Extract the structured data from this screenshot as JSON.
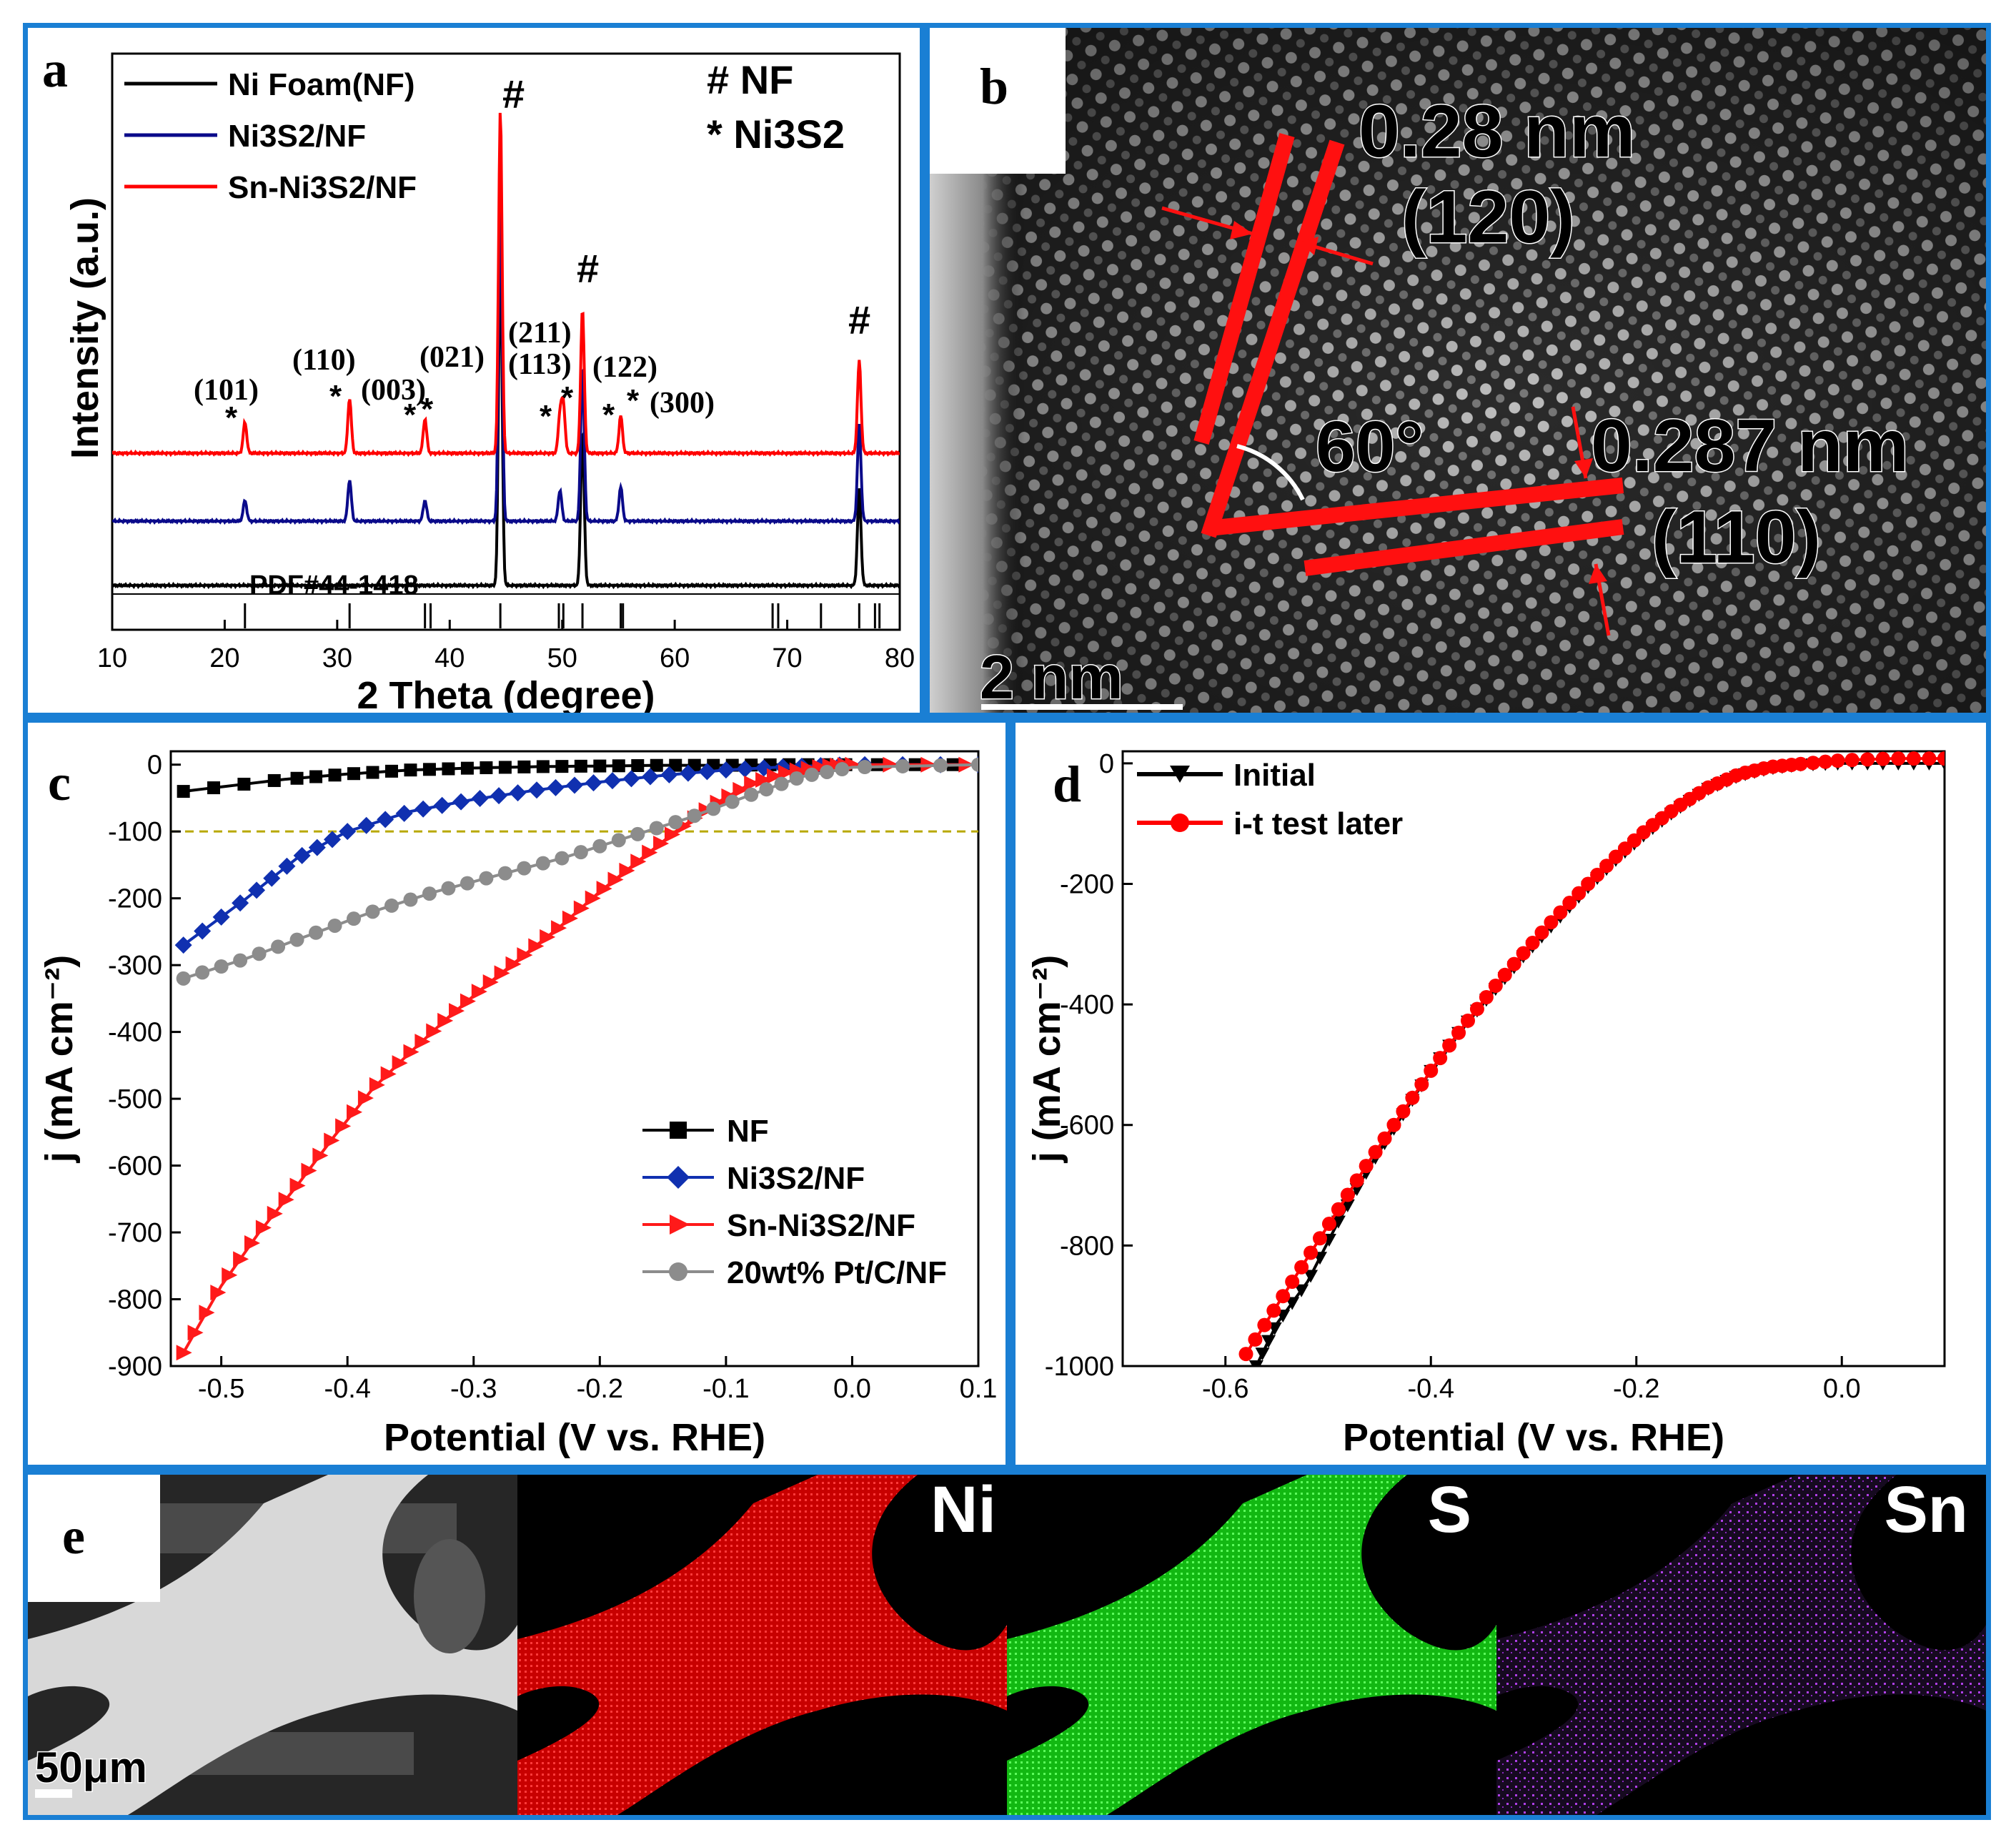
{
  "colors": {
    "frame": "#1a7fd4",
    "ni": "#e00000",
    "s": "#19e619",
    "sn": "#9a2fd0"
  },
  "panel_a": {
    "label": "a",
    "title_marker": "# NF",
    "title_marker2": "* Ni3S2",
    "pdf_label": "PDF#44-1418",
    "chart_data": {
      "type": "line",
      "xlabel": "2 Theta (degree)",
      "ylabel": "Intensity (a.u.)",
      "xlim": [
        10,
        80
      ],
      "xticks": [
        10,
        20,
        30,
        40,
        50,
        60,
        70,
        80
      ],
      "series": [
        {
          "name": "Ni Foam(NF)",
          "color": "#000000",
          "peaks": [
            [
              44.5,
              100
            ],
            [
              51.8,
              45
            ],
            [
              76.4,
              28
            ]
          ]
        },
        {
          "name": "Ni3S2/NF",
          "color": "#0a0a8a",
          "peaks": [
            [
              21.8,
              6
            ],
            [
              31.1,
              12
            ],
            [
              37.8,
              6
            ],
            [
              44.5,
              100
            ],
            [
              49.8,
              9
            ],
            [
              51.8,
              45
            ],
            [
              55.2,
              10
            ],
            [
              76.4,
              28
            ]
          ]
        },
        {
          "name": "Sn-Ni3S2/NF",
          "color": "#ff0000",
          "peaks": [
            [
              21.8,
              9
            ],
            [
              31.1,
              16
            ],
            [
              37.8,
              10
            ],
            [
              44.5,
              100
            ],
            [
              49.8,
              11
            ],
            [
              50.1,
              14
            ],
            [
              51.8,
              42
            ],
            [
              55.2,
              11
            ],
            [
              76.4,
              27
            ]
          ]
        }
      ],
      "pdf_lines": [
        21.8,
        31.1,
        37.8,
        38.3,
        44.5,
        49.7,
        50.1,
        51.8,
        55.2,
        55.4,
        68.7,
        69.2,
        73.0,
        76.4,
        77.8,
        78.2
      ],
      "annotations": [
        {
          "text": "(101)",
          "x": 22
        },
        {
          "text": "(110)",
          "x": 30
        },
        {
          "text": "(003)",
          "x": 36
        },
        {
          "text": "(021)",
          "x": 40
        },
        {
          "text": "(211)",
          "x": 48
        },
        {
          "text": "(113)",
          "x": 48
        },
        {
          "text": "(122)",
          "x": 55
        },
        {
          "text": "(300)",
          "x": 58
        },
        {
          "text": "#",
          "x": 44.5
        },
        {
          "text": "#",
          "x": 51.8
        },
        {
          "text": "#",
          "x": 76.4
        }
      ]
    }
  },
  "panel_b": {
    "label": "b",
    "d1": "0.28 nm",
    "hkl1": "(120)",
    "d2": "0.287 nm",
    "hkl2": "(110)",
    "angle": "60°",
    "scale": "2 nm"
  },
  "panel_c": {
    "label": "c",
    "chart_data": {
      "type": "line",
      "xlabel": "Potential (V vs. RHE)",
      "ylabel": "j (mA cm⁻²)",
      "xlim": [
        -0.54,
        0.1
      ],
      "ylim": [
        -900,
        20
      ],
      "xticks": [
        -0.5,
        -0.4,
        -0.3,
        -0.2,
        -0.1,
        0.0,
        0.1
      ],
      "yticks": [
        0,
        -100,
        -200,
        -300,
        -400,
        -500,
        -600,
        -700,
        -800,
        -900
      ],
      "reference_line": -100,
      "series": [
        {
          "name": "NF",
          "color": "#000000",
          "marker": "square",
          "x": [
            -0.53,
            -0.45,
            -0.4,
            -0.35,
            -0.3,
            -0.25,
            -0.2,
            -0.15,
            -0.1,
            -0.05,
            0.0,
            0.1
          ],
          "y": [
            -40,
            -22,
            -14,
            -8,
            -5,
            -3,
            -2,
            -1,
            -1,
            0,
            0,
            0
          ]
        },
        {
          "name": "Ni3S2/NF",
          "color": "#1030b0",
          "marker": "diamond",
          "x": [
            -0.53,
            -0.48,
            -0.44,
            -0.4,
            -0.35,
            -0.3,
            -0.25,
            -0.2,
            -0.15,
            -0.1,
            -0.05,
            0.0,
            0.1
          ],
          "y": [
            -270,
            -200,
            -140,
            -100,
            -70,
            -52,
            -38,
            -26,
            -16,
            -8,
            -3,
            0,
            0
          ]
        },
        {
          "name": "Sn-Ni3S2/NF",
          "color": "#ff1a1a",
          "marker": "triangle-right",
          "x": [
            -0.53,
            -0.5,
            -0.47,
            -0.44,
            -0.41,
            -0.38,
            -0.35,
            -0.32,
            -0.29,
            -0.26,
            -0.23,
            -0.2,
            -0.17,
            -0.14,
            -0.11,
            -0.08,
            -0.05,
            -0.02,
            0.0,
            0.1
          ],
          "y": [
            -880,
            -780,
            -700,
            -630,
            -555,
            -485,
            -430,
            -378,
            -330,
            -285,
            -240,
            -190,
            -145,
            -100,
            -60,
            -28,
            -10,
            -2,
            0,
            0
          ]
        },
        {
          "name": "20wt% Pt/C/NF",
          "color": "#8c8c8c",
          "marker": "circle",
          "x": [
            -0.53,
            -0.48,
            -0.43,
            -0.38,
            -0.33,
            -0.28,
            -0.23,
            -0.18,
            -0.13,
            -0.08,
            -0.04,
            0.0,
            0.1
          ],
          "y": [
            -320,
            -290,
            -255,
            -220,
            -190,
            -165,
            -140,
            -110,
            -80,
            -45,
            -18,
            -4,
            0
          ]
        }
      ]
    }
  },
  "panel_d": {
    "label": "d",
    "chart_data": {
      "type": "line",
      "xlabel": "Potential (V vs. RHE)",
      "ylabel": "j (mA cm⁻²)",
      "xlim": [
        -0.7,
        0.1
      ],
      "ylim": [
        -1000,
        20
      ],
      "xticks": [
        -0.6,
        -0.4,
        -0.2,
        0.0
      ],
      "yticks": [
        0,
        -200,
        -400,
        -600,
        -800,
        -1000
      ],
      "series": [
        {
          "name": "Initial",
          "color": "#000000",
          "marker": "triangle-down",
          "x": [
            -0.57,
            -0.55,
            -0.52,
            -0.49,
            -0.46,
            -0.43,
            -0.4,
            -0.37,
            -0.34,
            -0.31,
            -0.28,
            -0.25,
            -0.22,
            -0.19,
            -0.16,
            -0.13,
            -0.1,
            -0.07,
            -0.04,
            0.0,
            0.05,
            0.1
          ],
          "y": [
            -1000,
            -930,
            -860,
            -760,
            -670,
            -590,
            -510,
            -440,
            -380,
            -320,
            -265,
            -210,
            -160,
            -115,
            -75,
            -42,
            -20,
            -8,
            -2,
            0,
            0,
            0
          ]
        },
        {
          "name": "i-t test later",
          "color": "#ff0000",
          "marker": "circle",
          "x": [
            -0.58,
            -0.55,
            -0.52,
            -0.49,
            -0.46,
            -0.43,
            -0.4,
            -0.37,
            -0.34,
            -0.31,
            -0.28,
            -0.25,
            -0.22,
            -0.19,
            -0.16,
            -0.13,
            -0.1,
            -0.07,
            -0.04,
            0.0,
            0.05,
            0.1
          ],
          "y": [
            -980,
            -900,
            -820,
            -740,
            -660,
            -585,
            -510,
            -440,
            -375,
            -315,
            -258,
            -205,
            -155,
            -110,
            -72,
            -40,
            -18,
            -6,
            -1,
            5,
            8,
            8
          ]
        }
      ]
    }
  },
  "panel_e": {
    "label": "e",
    "scale": "50μm",
    "maps": [
      {
        "element": "Ni",
        "color": "#e00000"
      },
      {
        "element": "S",
        "color": "#19e619"
      },
      {
        "element": "Sn",
        "color": "#9a2fd0"
      }
    ]
  }
}
